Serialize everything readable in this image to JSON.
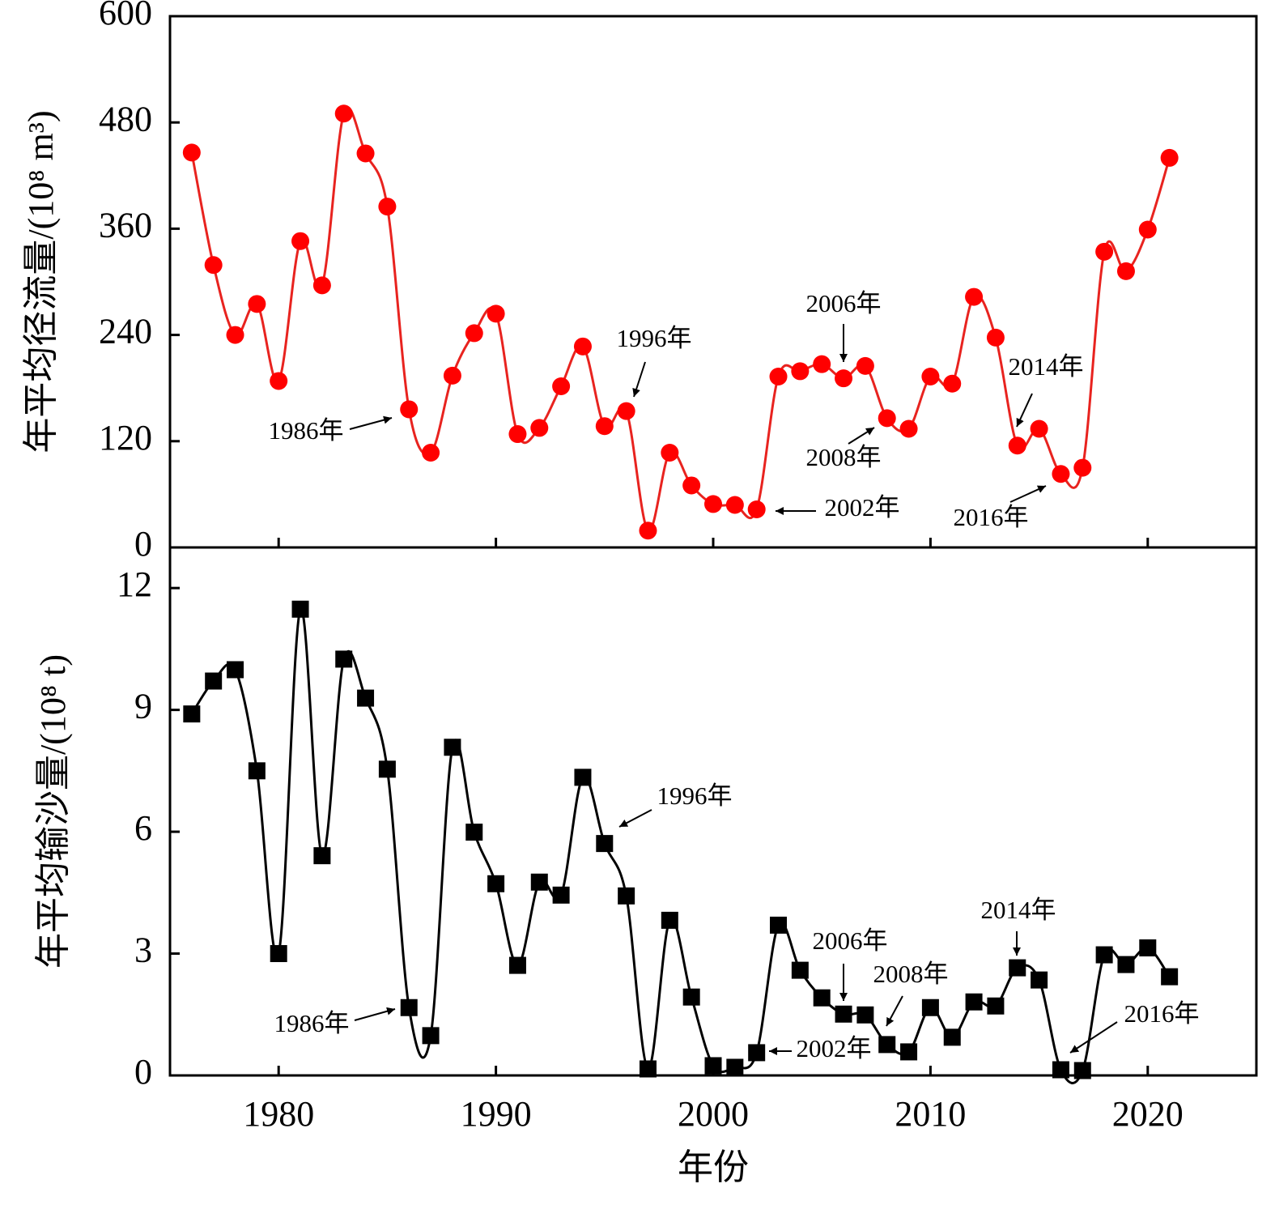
{
  "chart_data": [
    {
      "type": "line",
      "ylabel": "年平均径流量/(10⁸ m³)",
      "x": [
        1976,
        1977,
        1978,
        1979,
        1980,
        1981,
        1982,
        1983,
        1984,
        1985,
        1986,
        1987,
        1988,
        1989,
        1990,
        1991,
        1992,
        1993,
        1994,
        1995,
        1996,
        1997,
        1998,
        1999,
        2000,
        2001,
        2002,
        2003,
        2004,
        2005,
        2006,
        2007,
        2008,
        2009,
        2010,
        2011,
        2012,
        2013,
        2014,
        2015,
        2016,
        2017,
        2018,
        2019,
        2020,
        2021
      ],
      "xlim": [
        1975,
        2025
      ],
      "xticks": [
        1980,
        1990,
        2000,
        2010,
        2020
      ],
      "show_xtick_labels": false,
      "ylim": [
        0,
        600
      ],
      "yticks": [
        0,
        120,
        240,
        360,
        480,
        600
      ],
      "series": [
        {
          "color": "#ff0000",
          "line_color": "#e8231f",
          "marker": "circle",
          "values": [
            446,
            319,
            240,
            275,
            188,
            346,
            296,
            490,
            445,
            385,
            156,
            107,
            194,
            242,
            264,
            128,
            135,
            182,
            227,
            137,
            154,
            19,
            107,
            70,
            49,
            48,
            43,
            193,
            199,
            207,
            191,
            205,
            146,
            134,
            193,
            185,
            283,
            237,
            115,
            134,
            83,
            90,
            334,
            312,
            359,
            440
          ]
        }
      ],
      "annotations": [
        {
          "text": "1986年"
        },
        {
          "text": "1996年"
        },
        {
          "text": "2002年"
        },
        {
          "text": "2006年"
        },
        {
          "text": "2008年"
        },
        {
          "text": "2014年"
        },
        {
          "text": "2016年"
        }
      ]
    },
    {
      "type": "line",
      "ylabel": "年平均输沙量/(10⁸ t)",
      "xlabel": "年份",
      "x": [
        1976,
        1977,
        1978,
        1979,
        1980,
        1981,
        1982,
        1983,
        1984,
        1985,
        1986,
        1987,
        1988,
        1989,
        1990,
        1991,
        1992,
        1993,
        1994,
        1995,
        1996,
        1997,
        1998,
        1999,
        2000,
        2001,
        2002,
        2003,
        2004,
        2005,
        2006,
        2007,
        2008,
        2009,
        2010,
        2011,
        2012,
        2013,
        2014,
        2015,
        2016,
        2017,
        2018,
        2019,
        2020,
        2021
      ],
      "xlim": [
        1975,
        2025
      ],
      "xticks": [
        1980,
        1990,
        2000,
        2010,
        2020
      ],
      "show_xtick_labels": true,
      "ylim": [
        0,
        13
      ],
      "yticks": [
        0,
        3,
        6,
        9,
        12
      ],
      "series": [
        {
          "color": "#000000",
          "line_color": "#000000",
          "marker": "square",
          "values": [
            8.9,
            9.71,
            9.99,
            7.5,
            3.0,
            11.48,
            5.41,
            10.25,
            9.29,
            7.54,
            1.67,
            0.98,
            8.08,
            5.99,
            4.72,
            2.71,
            4.76,
            4.44,
            7.34,
            5.71,
            4.42,
            0.16,
            3.82,
            1.93,
            0.24,
            0.2,
            0.56,
            3.7,
            2.59,
            1.91,
            1.51,
            1.49,
            0.76,
            0.58,
            1.67,
            0.94,
            1.81,
            1.71,
            2.65,
            2.35,
            0.14,
            0.12,
            2.97,
            2.73,
            3.14,
            2.43
          ]
        }
      ],
      "annotations": [
        {
          "text": "1986年"
        },
        {
          "text": "1996年"
        },
        {
          "text": "2002年"
        },
        {
          "text": "2006年"
        },
        {
          "text": "2008年"
        },
        {
          "text": "2014年"
        },
        {
          "text": "2016年"
        }
      ]
    }
  ]
}
